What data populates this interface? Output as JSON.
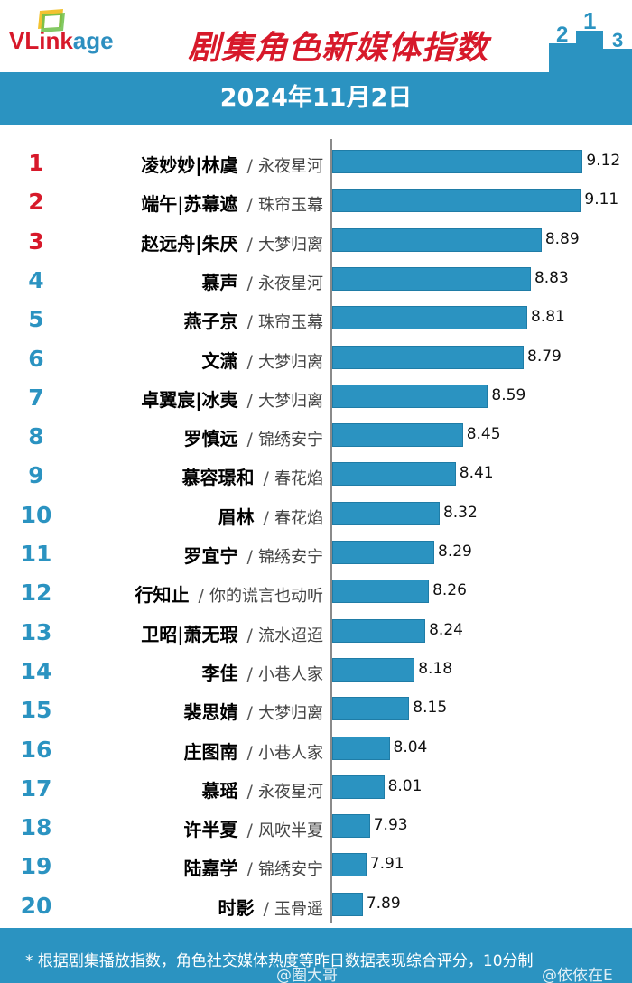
{
  "header": {
    "logo_red": "V",
    "logo_blue": "Link",
    "logo_rest": "age",
    "title": "剧集角色新媒体指数",
    "date": "2024年11月2日"
  },
  "colors": {
    "accent": "#2b93c1",
    "top_rank": "#d7192a"
  },
  "chart_data": {
    "type": "bar",
    "orientation": "horizontal",
    "title": "剧集角色新媒体指数",
    "subtitle": "2024年11月2日",
    "xlim": [
      0,
      10
    ],
    "items": [
      {
        "rank": "1",
        "name": "凌妙妙|林虞",
        "show": "永夜星河",
        "value": 9.12
      },
      {
        "rank": "2",
        "name": "端午|苏幕遮",
        "show": "珠帘玉幕",
        "value": 9.11
      },
      {
        "rank": "3",
        "name": "赵远舟|朱厌",
        "show": "大梦归离",
        "value": 8.89
      },
      {
        "rank": "4",
        "name": "慕声",
        "show": "永夜星河",
        "value": 8.83
      },
      {
        "rank": "5",
        "name": "燕子京",
        "show": "珠帘玉幕",
        "value": 8.81
      },
      {
        "rank": "6",
        "name": "文潇",
        "show": "大梦归离",
        "value": 8.79
      },
      {
        "rank": "7",
        "name": "卓翼宸|冰夷",
        "show": "大梦归离",
        "value": 8.59
      },
      {
        "rank": "8",
        "name": "罗慎远",
        "show": "锦绣安宁",
        "value": 8.45
      },
      {
        "rank": "9",
        "name": "慕容璟和",
        "show": "春花焰",
        "value": 8.41
      },
      {
        "rank": "10",
        "name": "眉林",
        "show": "春花焰",
        "value": 8.32
      },
      {
        "rank": "11",
        "name": "罗宜宁",
        "show": "锦绣安宁",
        "value": 8.29
      },
      {
        "rank": "12",
        "name": "行知止",
        "show": "你的谎言也动听",
        "value": 8.26
      },
      {
        "rank": "13",
        "name": "卫昭|萧无瑕",
        "show": "流水迢迢",
        "value": 8.24
      },
      {
        "rank": "14",
        "name": "李佳",
        "show": "小巷人家",
        "value": 8.18
      },
      {
        "rank": "15",
        "name": "裴思婧",
        "show": "大梦归离",
        "value": 8.15
      },
      {
        "rank": "16",
        "name": "庄图南",
        "show": "小巷人家",
        "value": 8.04
      },
      {
        "rank": "17",
        "name": "慕瑶",
        "show": "永夜星河",
        "value": 8.01
      },
      {
        "rank": "18",
        "name": "许半夏",
        "show": "风吹半夏",
        "value": 7.93
      },
      {
        "rank": "19",
        "name": "陆嘉学",
        "show": "锦绣安宁",
        "value": 7.91
      },
      {
        "rank": "20",
        "name": "时影",
        "show": "玉骨遥",
        "value": 7.89
      }
    ]
  },
  "footer": {
    "note": "* 根据剧集播放指数，角色社交媒体热度等昨日数据表现综合评分，10分制",
    "watermark_left": "@圈大哥",
    "watermark_right": "@依依在E"
  }
}
